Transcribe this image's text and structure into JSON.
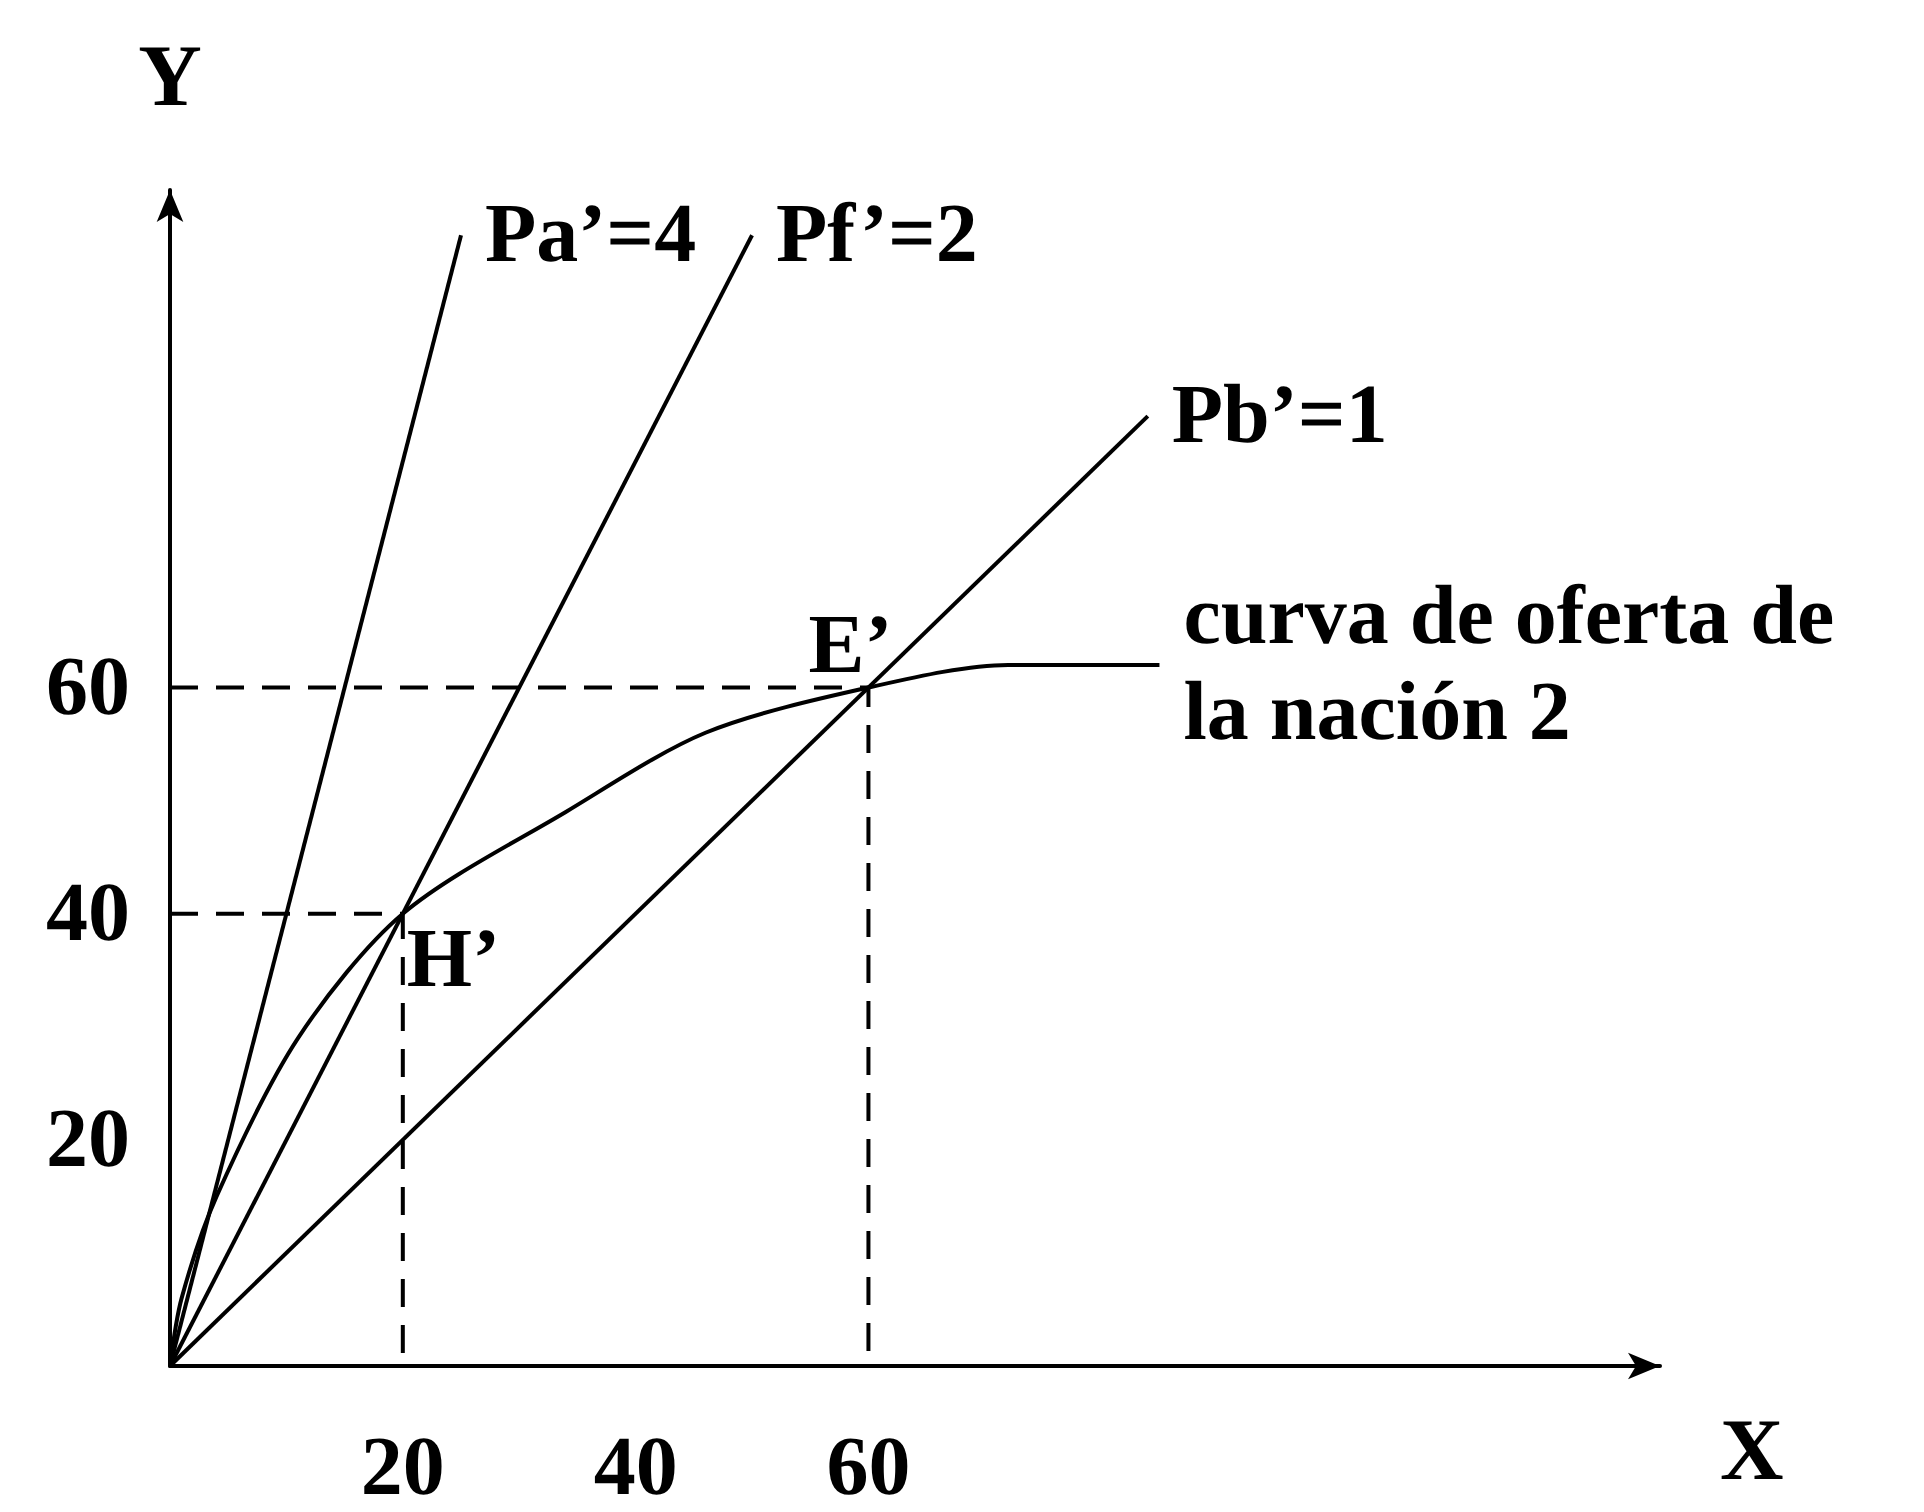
{
  "chart_data": {
    "type": "line",
    "xlabel": "X",
    "ylabel": "Y",
    "xlim": [
      0,
      128
    ],
    "ylim": [
      0,
      104
    ],
    "xticks": [
      20,
      40,
      60
    ],
    "yticks": [
      20,
      40,
      60
    ],
    "grid": false,
    "legend": false,
    "marker": "none",
    "series": [
      {
        "name": "Pa’=4",
        "color": "#000000",
        "x": [
          0,
          25
        ],
        "values": [
          0,
          100
        ]
      },
      {
        "name": "Pf’=2",
        "color": "#000000",
        "x": [
          0,
          50
        ],
        "values": [
          0,
          100
        ]
      },
      {
        "name": "Pb’=1",
        "color": "#000000",
        "x": [
          0,
          84
        ],
        "values": [
          0,
          84
        ]
      },
      {
        "name": "curva de oferta de la nación 2",
        "color": "#000000",
        "x": [
          0,
          1,
          4,
          11,
          20,
          34,
          46,
          60,
          72,
          85
        ],
        "values": [
          0,
          6,
          15,
          29,
          40,
          49,
          56,
          60,
          62,
          62
        ]
      },
      {
        "color": "#000000",
        "line_style": "dashed",
        "x": [
          0,
          60,
          60
        ],
        "values": [
          60,
          60,
          0
        ]
      },
      {
        "color": "#000000",
        "line_style": "dashed",
        "x": [
          0,
          20,
          20
        ],
        "values": [
          40,
          40,
          0
        ]
      }
    ],
    "annotations": [
      {
        "text": "E’",
        "x": 60,
        "y": 60
      },
      {
        "text": "H’",
        "x": 20,
        "y": 40
      }
    ]
  }
}
